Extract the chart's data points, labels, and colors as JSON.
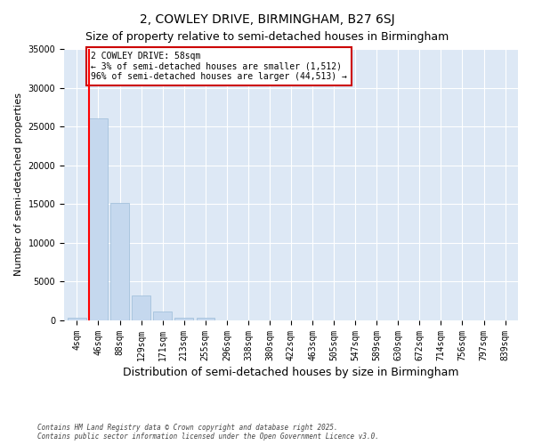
{
  "title": "2, COWLEY DRIVE, BIRMINGHAM, B27 6SJ",
  "subtitle": "Size of property relative to semi-detached houses in Birmingham",
  "xlabel": "Distribution of semi-detached houses by size in Birmingham",
  "ylabel": "Number of semi-detached properties",
  "categories": [
    "4sqm",
    "46sqm",
    "88sqm",
    "129sqm",
    "171sqm",
    "213sqm",
    "255sqm",
    "296sqm",
    "338sqm",
    "380sqm",
    "422sqm",
    "463sqm",
    "505sqm",
    "547sqm",
    "589sqm",
    "630sqm",
    "672sqm",
    "714sqm",
    "756sqm",
    "797sqm",
    "839sqm"
  ],
  "values": [
    400,
    26100,
    15100,
    3200,
    1100,
    400,
    300,
    50,
    0,
    0,
    0,
    0,
    0,
    0,
    0,
    0,
    0,
    0,
    0,
    0,
    0
  ],
  "bar_color": "#c5d8ee",
  "bar_edgecolor": "#9bbcd8",
  "red_line_index": 1,
  "property_label": "2 COWLEY DRIVE: 58sqm",
  "pct_smaller": 3,
  "pct_larger": 96,
  "n_smaller": 1512,
  "n_larger": 44513,
  "ylim": [
    0,
    35000
  ],
  "yticks": [
    0,
    5000,
    10000,
    15000,
    20000,
    25000,
    30000,
    35000
  ],
  "annotation_box_color": "#ffffff",
  "annotation_box_edgecolor": "#cc0000",
  "bg_color": "#dde8f5",
  "plot_bg_color": "#dde8f5",
  "footnote": "Contains HM Land Registry data © Crown copyright and database right 2025.\nContains public sector information licensed under the Open Government Licence v3.0.",
  "title_fontsize": 10,
  "subtitle_fontsize": 9,
  "xlabel_fontsize": 9,
  "ylabel_fontsize": 8,
  "annot_fontsize": 7,
  "tick_fontsize": 7
}
